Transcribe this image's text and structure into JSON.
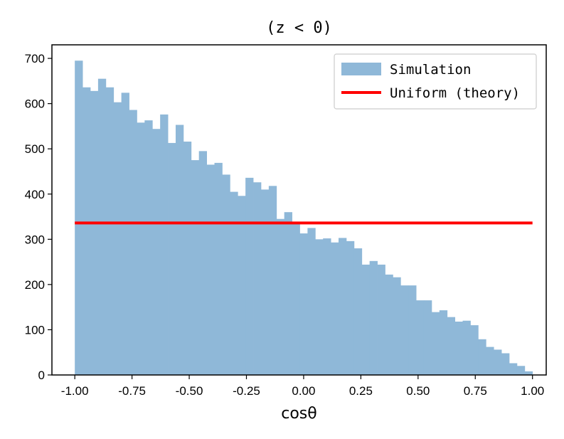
{
  "chart_data": {
    "type": "bar",
    "title": "(z < 0)",
    "xlabel": "cosθ",
    "ylabel": "",
    "xlim": [
      -1.1,
      1.06
    ],
    "ylim": [
      0,
      730
    ],
    "bin_start": -1.0,
    "bin_width": 0.0333,
    "xticks": [
      "-1.00",
      "-0.75",
      "-0.50",
      "-0.25",
      "0.00",
      "0.25",
      "0.50",
      "0.75",
      "1.00"
    ],
    "yticks": [
      "0",
      "100",
      "200",
      "300",
      "400",
      "500",
      "600",
      "700"
    ],
    "series": [
      {
        "name": "Simulation",
        "color": "#8fb8d8",
        "values": [
          695,
          636,
          628,
          655,
          636,
          603,
          624,
          586,
          558,
          563,
          544,
          576,
          513,
          553,
          516,
          475,
          495,
          465,
          469,
          443,
          405,
          396,
          436,
          426,
          410,
          418,
          345,
          360,
          336,
          313,
          325,
          300,
          302,
          293,
          303,
          296,
          280,
          244,
          252,
          244,
          222,
          216,
          198,
          198,
          165,
          165,
          139,
          143,
          128,
          118,
          120,
          110,
          79,
          62,
          56,
          48,
          26,
          20,
          8
        ]
      },
      {
        "name": "Uniform (theory)",
        "color": "#ff0000",
        "x": [
          -1.0,
          1.0
        ],
        "values": [
          336,
          336
        ]
      }
    ],
    "legend": "top-right"
  }
}
